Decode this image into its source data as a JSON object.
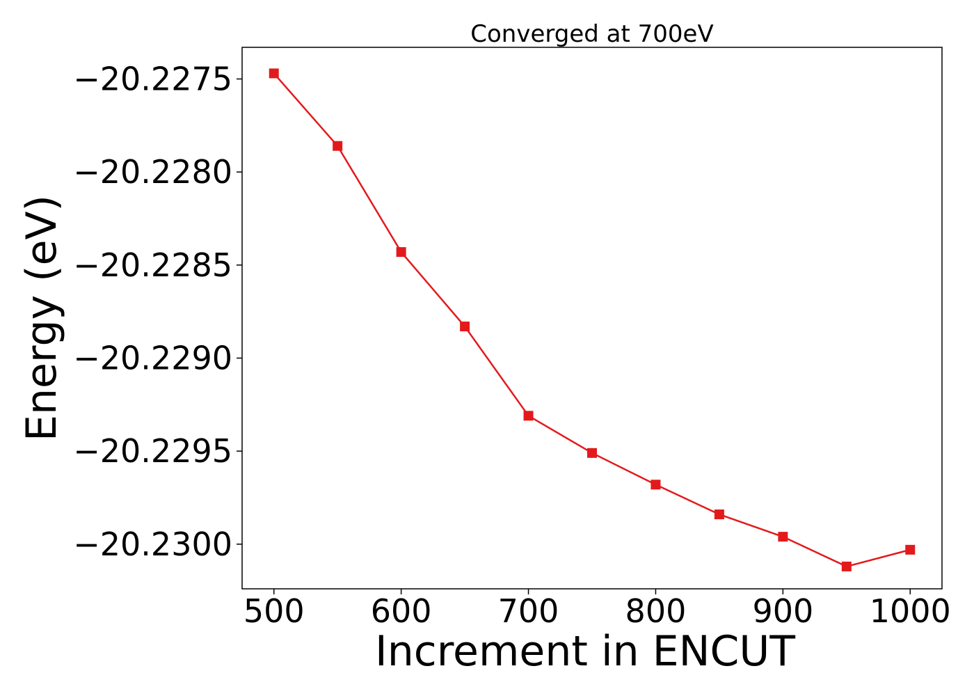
{
  "chart_data": {
    "type": "line",
    "title": "Converged at 700eV",
    "xlabel": "Increment in ENCUT",
    "ylabel": "Energy (eV)",
    "xlim": [
      475,
      1025
    ],
    "ylim": [
      -20.23024,
      -20.22733
    ],
    "x_ticks": [
      500,
      600,
      700,
      800,
      900,
      1000
    ],
    "x_tick_labels": [
      "500",
      "600",
      "700",
      "800",
      "900",
      "1000"
    ],
    "y_ticks": [
      -20.2275,
      -20.228,
      -20.2285,
      -20.229,
      -20.2295,
      -20.23
    ],
    "y_tick_labels": [
      "−20.2275",
      "−20.2280",
      "−20.2285",
      "−20.2290",
      "−20.2295",
      "−20.2300"
    ],
    "grid": false,
    "series": [
      {
        "color": "#e31a1c",
        "marker": "square",
        "x": [
          500,
          550,
          600,
          650,
          700,
          750,
          800,
          850,
          900,
          950,
          1000
        ],
        "y": [
          -20.22747,
          -20.22786,
          -20.22843,
          -20.22883,
          -20.22931,
          -20.22951,
          -20.22968,
          -20.22984,
          -20.22996,
          -20.23012,
          -20.23003
        ]
      }
    ]
  }
}
